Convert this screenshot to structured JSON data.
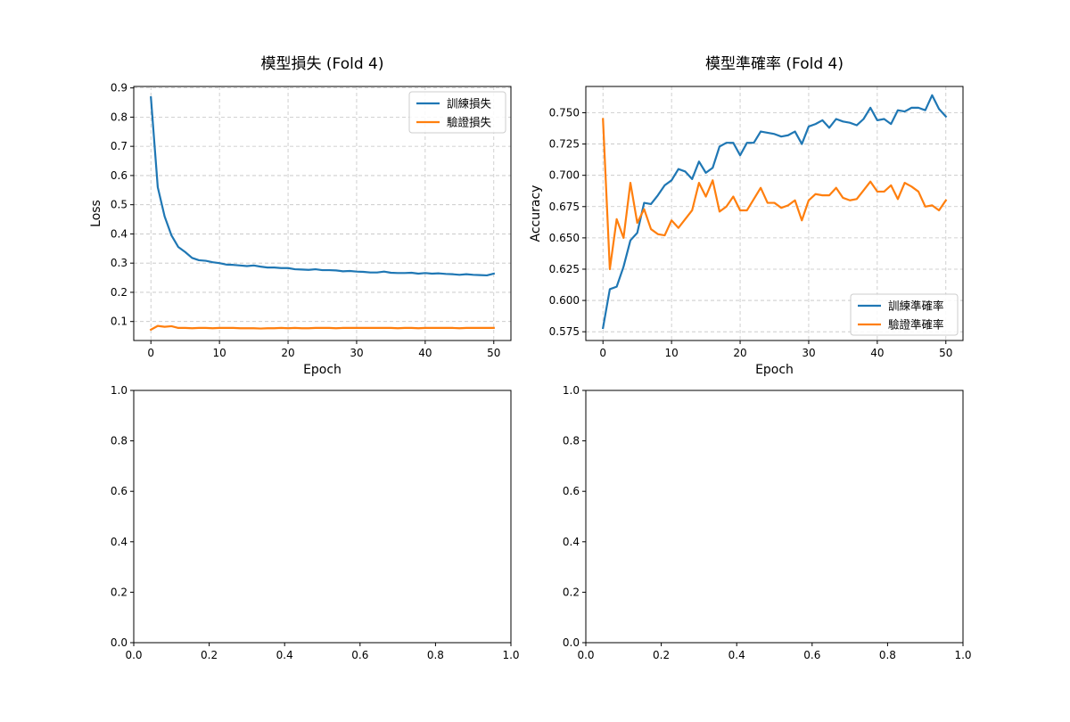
{
  "figure": {
    "background": "#ffffff"
  },
  "colors": {
    "train": "#1f77b4",
    "val": "#ff7f0e",
    "grid": "#b0b0b0"
  },
  "chart_data": [
    {
      "id": "loss",
      "type": "line",
      "title": "模型損失 (Fold 4)",
      "xlabel": "Epoch",
      "ylabel": "Loss",
      "xlim": [
        -2.5,
        52.5
      ],
      "ylim": [
        0.035,
        0.905
      ],
      "xticks": [
        0,
        10,
        20,
        30,
        40,
        50
      ],
      "yticks": [
        0.1,
        0.2,
        0.3,
        0.4,
        0.5,
        0.6,
        0.7,
        0.8,
        0.9
      ],
      "ytick_labels": [
        "0.1",
        "0.2",
        "0.3",
        "0.4",
        "0.5",
        "0.6",
        "0.7",
        "0.8",
        "0.9"
      ],
      "grid": true,
      "legend_position": "upper right",
      "x": [
        0,
        1,
        2,
        3,
        4,
        5,
        6,
        7,
        8,
        9,
        10,
        11,
        12,
        13,
        14,
        15,
        16,
        17,
        18,
        19,
        20,
        21,
        22,
        23,
        24,
        25,
        26,
        27,
        28,
        29,
        30,
        31,
        32,
        33,
        34,
        35,
        36,
        37,
        38,
        39,
        40,
        41,
        42,
        43,
        44,
        45,
        46,
        47,
        48,
        49,
        50
      ],
      "series": [
        {
          "name": "訓練損失",
          "color_key": "train",
          "values": [
            0.868,
            0.56,
            0.46,
            0.395,
            0.355,
            0.338,
            0.318,
            0.31,
            0.308,
            0.303,
            0.3,
            0.295,
            0.294,
            0.292,
            0.29,
            0.292,
            0.288,
            0.285,
            0.285,
            0.283,
            0.283,
            0.279,
            0.278,
            0.277,
            0.279,
            0.276,
            0.276,
            0.275,
            0.272,
            0.273,
            0.271,
            0.27,
            0.268,
            0.268,
            0.271,
            0.267,
            0.266,
            0.266,
            0.267,
            0.264,
            0.266,
            0.264,
            0.265,
            0.263,
            0.262,
            0.26,
            0.262,
            0.26,
            0.259,
            0.258,
            0.264
          ]
        },
        {
          "name": "驗證損失",
          "color_key": "val",
          "values": [
            0.072,
            0.085,
            0.082,
            0.084,
            0.078,
            0.078,
            0.077,
            0.078,
            0.078,
            0.077,
            0.078,
            0.078,
            0.078,
            0.077,
            0.077,
            0.077,
            0.076,
            0.077,
            0.077,
            0.078,
            0.077,
            0.078,
            0.077,
            0.077,
            0.078,
            0.078,
            0.078,
            0.077,
            0.078,
            0.078,
            0.078,
            0.078,
            0.078,
            0.078,
            0.078,
            0.078,
            0.077,
            0.078,
            0.078,
            0.077,
            0.078,
            0.078,
            0.078,
            0.078,
            0.078,
            0.077,
            0.078,
            0.078,
            0.078,
            0.078,
            0.078
          ]
        }
      ]
    },
    {
      "id": "accuracy",
      "type": "line",
      "title": "模型準確率 (Fold 4)",
      "xlabel": "Epoch",
      "ylabel": "Accuracy",
      "xlim": [
        -2.5,
        52.5
      ],
      "ylim": [
        0.568,
        0.771
      ],
      "xticks": [
        0,
        10,
        20,
        30,
        40,
        50
      ],
      "yticks": [
        0.575,
        0.6,
        0.625,
        0.65,
        0.675,
        0.7,
        0.725,
        0.75
      ],
      "ytick_labels": [
        "0.575",
        "0.600",
        "0.625",
        "0.650",
        "0.675",
        "0.700",
        "0.725",
        "0.750"
      ],
      "grid": true,
      "legend_position": "lower right",
      "x": [
        0,
        1,
        2,
        3,
        4,
        5,
        6,
        7,
        8,
        9,
        10,
        11,
        12,
        13,
        14,
        15,
        16,
        17,
        18,
        19,
        20,
        21,
        22,
        23,
        24,
        25,
        26,
        27,
        28,
        29,
        30,
        31,
        32,
        33,
        34,
        35,
        36,
        37,
        38,
        39,
        40,
        41,
        42,
        43,
        44,
        45,
        46,
        47,
        48,
        49,
        50
      ],
      "series": [
        {
          "name": "訓練準確率",
          "color_key": "train",
          "values": [
            0.578,
            0.609,
            0.611,
            0.627,
            0.648,
            0.654,
            0.678,
            0.677,
            0.684,
            0.692,
            0.696,
            0.705,
            0.703,
            0.697,
            0.711,
            0.702,
            0.706,
            0.723,
            0.726,
            0.726,
            0.716,
            0.726,
            0.726,
            0.735,
            0.734,
            0.733,
            0.731,
            0.732,
            0.735,
            0.725,
            0.739,
            0.741,
            0.744,
            0.738,
            0.745,
            0.743,
            0.742,
            0.74,
            0.745,
            0.754,
            0.744,
            0.745,
            0.741,
            0.752,
            0.751,
            0.754,
            0.754,
            0.752,
            0.764,
            0.753,
            0.747
          ]
        },
        {
          "name": "驗證準確率",
          "color_key": "val",
          "values": [
            0.745,
            0.625,
            0.665,
            0.65,
            0.694,
            0.662,
            0.673,
            0.657,
            0.653,
            0.652,
            0.664,
            0.658,
            0.665,
            0.672,
            0.694,
            0.683,
            0.696,
            0.671,
            0.675,
            0.683,
            0.672,
            0.672,
            0.681,
            0.69,
            0.678,
            0.678,
            0.674,
            0.676,
            0.68,
            0.664,
            0.68,
            0.685,
            0.684,
            0.684,
            0.69,
            0.682,
            0.68,
            0.681,
            0.688,
            0.695,
            0.687,
            0.687,
            0.692,
            0.681,
            0.694,
            0.691,
            0.687,
            0.675,
            0.676,
            0.672,
            0.68
          ]
        }
      ]
    },
    {
      "id": "empty-left",
      "type": "line",
      "title": "",
      "xlabel": "",
      "ylabel": "",
      "xlim": [
        0,
        1
      ],
      "ylim": [
        0,
        1
      ],
      "xticks": [
        0,
        0.2,
        0.4,
        0.6,
        0.8,
        1.0
      ],
      "xtick_labels": [
        "0.0",
        "0.2",
        "0.4",
        "0.6",
        "0.8",
        "1.0"
      ],
      "yticks": [
        0,
        0.2,
        0.4,
        0.6,
        0.8,
        1.0
      ],
      "ytick_labels": [
        "0.0",
        "0.2",
        "0.4",
        "0.6",
        "0.8",
        "1.0"
      ],
      "grid": false,
      "series": []
    },
    {
      "id": "empty-right",
      "type": "line",
      "title": "",
      "xlabel": "",
      "ylabel": "",
      "xlim": [
        0,
        1
      ],
      "ylim": [
        0,
        1
      ],
      "xticks": [
        0,
        0.2,
        0.4,
        0.6,
        0.8,
        1.0
      ],
      "xtick_labels": [
        "0.0",
        "0.2",
        "0.4",
        "0.6",
        "0.8",
        "1.0"
      ],
      "yticks": [
        0,
        0.2,
        0.4,
        0.6,
        0.8,
        1.0
      ],
      "ytick_labels": [
        "0.0",
        "0.2",
        "0.4",
        "0.6",
        "0.8",
        "1.0"
      ],
      "grid": false,
      "series": []
    }
  ]
}
